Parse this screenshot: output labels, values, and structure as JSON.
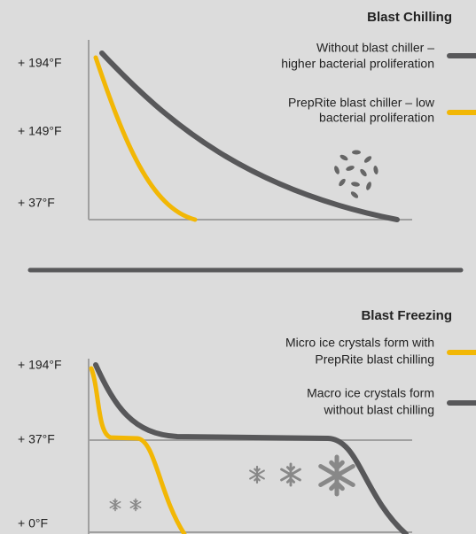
{
  "chilling": {
    "title": "Blast Chilling",
    "legend": [
      {
        "lines": [
          "Without blast chiller –",
          "higher bacterial proliferation"
        ]
      },
      {
        "lines": [
          "PrepRite blast chiller – low",
          "bacterial proliferation"
        ]
      }
    ],
    "y_labels": [
      "+ 194°F",
      "+ 149°F",
      "+ 37°F"
    ]
  },
  "freezing": {
    "title": "Blast Freezing",
    "legend": [
      {
        "lines": [
          "Micro ice crystals form with",
          "PrepRite blast chilling"
        ]
      },
      {
        "lines": [
          "Macro ice crystals form",
          "without blast chilling"
        ]
      }
    ],
    "y_labels": [
      "+ 194°F",
      "+ 37°F",
      "+ 0°F"
    ]
  }
}
